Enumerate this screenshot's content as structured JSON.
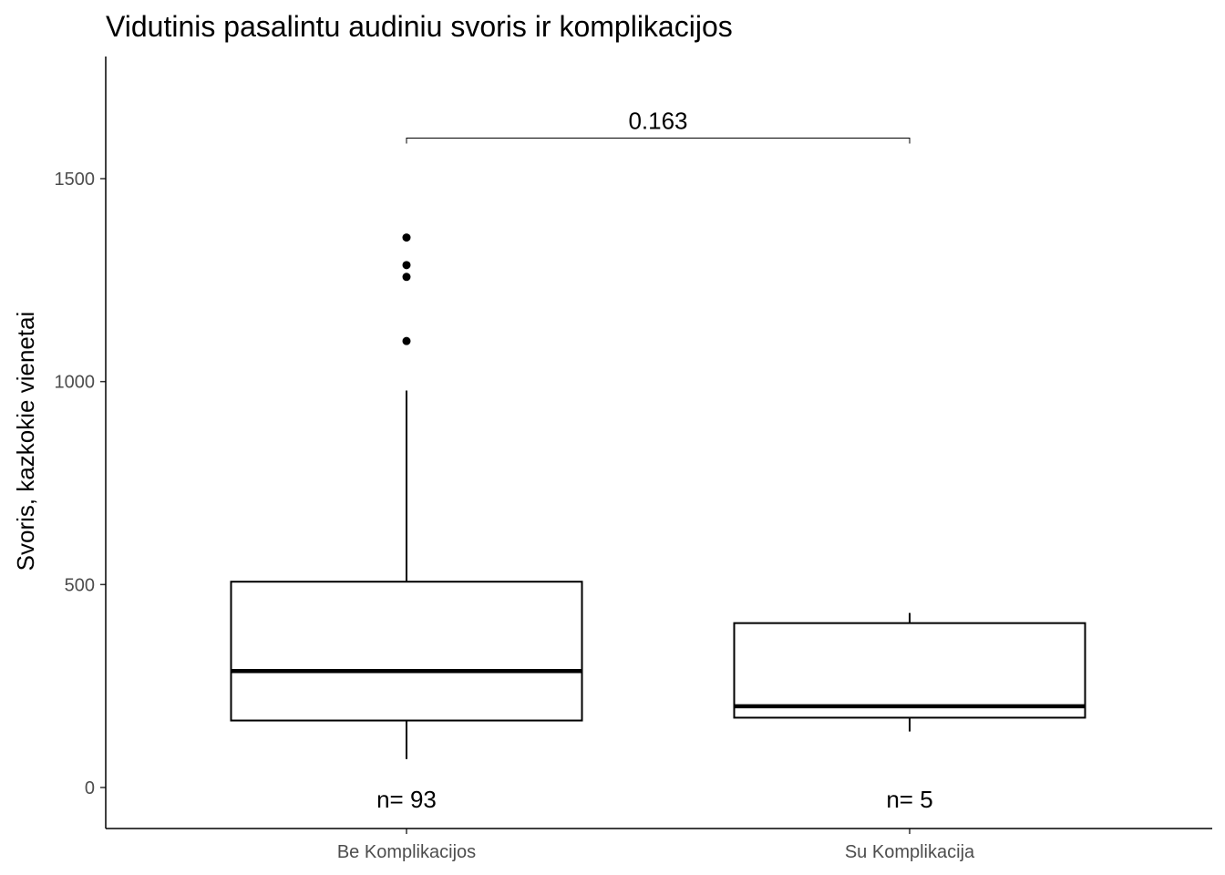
{
  "chart_data": {
    "type": "boxplot",
    "title": "Vidutinis pasalintu audiniu svoris ir komplikacijos",
    "xlabel": "",
    "ylabel": "Svoris, kazkokie vienetai",
    "ylim": [
      -100,
      1800
    ],
    "yticks": [
      0,
      500,
      1000,
      1500
    ],
    "grid": false,
    "categories": [
      "Be Komplikacijos",
      "Su Komplikacija"
    ],
    "boxes": [
      {
        "category": "Be Komplikacijos",
        "whisker_low": 70,
        "q1": 165,
        "median": 287,
        "q3": 507,
        "whisker_high": 978,
        "outliers": [
          1100,
          1258,
          1287,
          1355
        ],
        "n_label": "n= 93"
      },
      {
        "category": "Su Komplikacija",
        "whisker_low": 138,
        "q1": 172,
        "median": 200,
        "q3": 405,
        "whisker_high": 430,
        "outliers": [],
        "n_label": "n= 5"
      }
    ],
    "comparison": {
      "from": "Be Komplikacijos",
      "to": "Su Komplikacija",
      "y": 1600,
      "label": "0.163"
    }
  }
}
